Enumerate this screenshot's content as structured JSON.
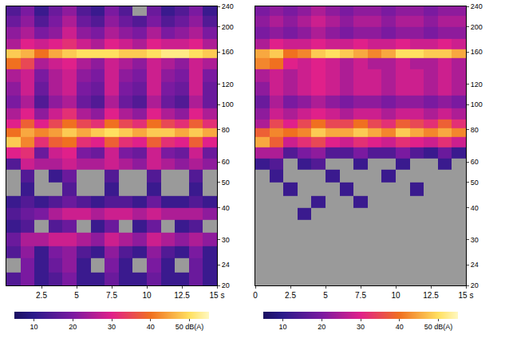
{
  "chart_data": [
    {
      "type": "heatmap",
      "x": [
        0.5,
        1.5,
        2.5,
        3.5,
        4.5,
        5.5,
        6.5,
        7.5,
        8.5,
        9.5,
        10.5,
        11.5,
        12.5,
        13.5,
        14.5
      ],
      "y": [
        21,
        24,
        27,
        30,
        34,
        38,
        42,
        47,
        53,
        59,
        65,
        72,
        78,
        84,
        92,
        102,
        115,
        130,
        145,
        158,
        170,
        190,
        210,
        232
      ],
      "z": [
        [
          15,
          20,
          12,
          15,
          20,
          12,
          12,
          18,
          12,
          12,
          18,
          12,
          12,
          18,
          12
        ],
        [
          null,
          20,
          12,
          18,
          22,
          12,
          null,
          20,
          12,
          null,
          20,
          12,
          null,
          18,
          12
        ],
        [
          15,
          22,
          12,
          20,
          22,
          15,
          12,
          22,
          15,
          12,
          22,
          15,
          12,
          20,
          12
        ],
        [
          18,
          25,
          25,
          28,
          28,
          25,
          22,
          28,
          25,
          22,
          28,
          25,
          22,
          25,
          22
        ],
        [
          12,
          15,
          null,
          15,
          18,
          null,
          12,
          18,
          null,
          12,
          18,
          null,
          12,
          15,
          null
        ],
        [
          15,
          18,
          20,
          25,
          28,
          28,
          25,
          28,
          28,
          25,
          28,
          25,
          25,
          25,
          22
        ],
        [
          12,
          15,
          12,
          15,
          18,
          15,
          12,
          15,
          15,
          12,
          18,
          12,
          12,
          15,
          12
        ],
        [
          null,
          12,
          null,
          null,
          15,
          null,
          null,
          12,
          null,
          null,
          12,
          null,
          null,
          12,
          null
        ],
        [
          null,
          15,
          null,
          12,
          18,
          null,
          null,
          15,
          null,
          null,
          15,
          null,
          null,
          15,
          null
        ],
        [
          15,
          28,
          25,
          25,
          28,
          25,
          25,
          28,
          25,
          22,
          28,
          25,
          22,
          25,
          22
        ],
        [
          30,
          32,
          18,
          28,
          30,
          20,
          18,
          28,
          20,
          18,
          28,
          20,
          18,
          28,
          18
        ],
        [
          48,
          42,
          32,
          38,
          40,
          32,
          30,
          38,
          32,
          30,
          38,
          32,
          30,
          38,
          30
        ],
        [
          40,
          45,
          42,
          44,
          48,
          45,
          48,
          50,
          48,
          45,
          48,
          48,
          45,
          48,
          45
        ],
        [
          30,
          38,
          30,
          35,
          40,
          35,
          32,
          40,
          35,
          32,
          40,
          35,
          32,
          38,
          32
        ],
        [
          25,
          30,
          22,
          28,
          32,
          25,
          22,
          30,
          25,
          22,
          30,
          25,
          22,
          30,
          25
        ],
        [
          20,
          25,
          15,
          22,
          25,
          18,
          15,
          25,
          18,
          15,
          25,
          18,
          15,
          25,
          18
        ],
        [
          22,
          28,
          18,
          25,
          28,
          20,
          18,
          28,
          20,
          18,
          28,
          20,
          18,
          28,
          18
        ],
        [
          25,
          28,
          20,
          25,
          28,
          22,
          20,
          28,
          22,
          20,
          28,
          22,
          20,
          28,
          20
        ],
        [
          40,
          35,
          25,
          28,
          30,
          25,
          22,
          28,
          25,
          22,
          28,
          25,
          22,
          28,
          25
        ],
        [
          48,
          46,
          40,
          45,
          48,
          50,
          50,
          50,
          48,
          48,
          50,
          52,
          52,
          50,
          48
        ],
        [
          25,
          30,
          28,
          30,
          32,
          28,
          25,
          30,
          28,
          25,
          30,
          28,
          28,
          30,
          25
        ],
        [
          22,
          25,
          20,
          22,
          28,
          22,
          20,
          25,
          22,
          20,
          25,
          20,
          22,
          25,
          20
        ],
        [
          18,
          22,
          15,
          20,
          25,
          18,
          15,
          22,
          18,
          15,
          20,
          15,
          18,
          22,
          15
        ],
        [
          15,
          20,
          12,
          18,
          22,
          15,
          12,
          20,
          15,
          null,
          18,
          12,
          15,
          20,
          12
        ]
      ],
      "xlim": [
        0,
        15
      ],
      "xticks": [
        2.5,
        5,
        7.5,
        10,
        12.5,
        {
          "value": 15,
          "label": "15 s"
        }
      ],
      "ylim": [
        20,
        240
      ],
      "yticks": [
        20,
        24,
        30,
        40,
        50,
        60,
        80,
        100,
        120,
        160,
        200,
        240
      ],
      "log": "y",
      "zlim": [
        5,
        55
      ],
      "zticks": [
        10,
        20,
        30,
        40,
        {
          "value": 50,
          "label": "50 dB(A)"
        }
      ]
    },
    {
      "type": "heatmap",
      "x": [
        0.5,
        1.5,
        2.5,
        3.5,
        4.5,
        5.5,
        6.5,
        7.5,
        8.5,
        9.5,
        10.5,
        11.5,
        12.5,
        13.5,
        14.5
      ],
      "y": [
        21,
        24,
        27,
        30,
        34,
        38,
        42,
        47,
        53,
        59,
        65,
        72,
        78,
        84,
        92,
        102,
        115,
        130,
        145,
        158,
        170,
        190,
        210,
        232
      ],
      "z": [
        [
          null,
          null,
          null,
          null,
          null,
          null,
          null,
          null,
          null,
          null,
          null,
          null,
          null,
          null,
          null
        ],
        [
          null,
          null,
          null,
          null,
          null,
          null,
          null,
          null,
          null,
          null,
          null,
          null,
          null,
          null,
          null
        ],
        [
          null,
          null,
          null,
          null,
          null,
          null,
          null,
          null,
          null,
          null,
          null,
          null,
          null,
          null,
          null
        ],
        [
          null,
          null,
          null,
          null,
          null,
          null,
          null,
          null,
          null,
          null,
          null,
          null,
          null,
          null,
          null
        ],
        [
          null,
          null,
          null,
          null,
          null,
          null,
          null,
          null,
          null,
          null,
          null,
          null,
          null,
          null,
          null
        ],
        [
          null,
          null,
          null,
          12,
          null,
          null,
          null,
          null,
          null,
          null,
          null,
          null,
          null,
          null,
          null
        ],
        [
          null,
          null,
          null,
          null,
          12,
          null,
          null,
          12,
          null,
          null,
          null,
          null,
          null,
          null,
          null
        ],
        [
          null,
          null,
          12,
          null,
          null,
          null,
          12,
          null,
          null,
          null,
          null,
          12,
          null,
          null,
          null
        ],
        [
          null,
          12,
          null,
          null,
          null,
          12,
          null,
          null,
          null,
          12,
          null,
          null,
          null,
          null,
          null
        ],
        [
          12,
          15,
          null,
          12,
          15,
          null,
          null,
          12,
          null,
          null,
          12,
          null,
          null,
          12,
          null
        ],
        [
          25,
          25,
          15,
          20,
          22,
          15,
          15,
          20,
          15,
          15,
          20,
          15,
          12,
          18,
          12
        ],
        [
          45,
          38,
          28,
          32,
          35,
          30,
          28,
          32,
          30,
          28,
          32,
          30,
          28,
          32,
          28
        ],
        [
          38,
          42,
          40,
          42,
          48,
          45,
          45,
          48,
          45,
          42,
          48,
          45,
          42,
          45,
          42
        ],
        [
          25,
          35,
          30,
          35,
          40,
          35,
          35,
          40,
          35,
          32,
          38,
          35,
          32,
          38,
          32
        ],
        [
          22,
          28,
          25,
          28,
          30,
          28,
          25,
          28,
          28,
          25,
          28,
          28,
          25,
          28,
          25
        ],
        [
          18,
          25,
          20,
          22,
          25,
          22,
          20,
          22,
          22,
          20,
          22,
          22,
          20,
          22,
          20
        ],
        [
          22,
          28,
          25,
          28,
          30,
          28,
          25,
          28,
          28,
          25,
          28,
          28,
          25,
          28,
          25
        ],
        [
          25,
          28,
          25,
          28,
          30,
          28,
          25,
          28,
          28,
          25,
          28,
          28,
          25,
          28,
          25
        ],
        [
          42,
          40,
          30,
          28,
          30,
          28,
          25,
          28,
          25,
          25,
          28,
          25,
          25,
          28,
          25
        ],
        [
          45,
          48,
          40,
          42,
          48,
          50,
          48,
          45,
          42,
          45,
          50,
          50,
          48,
          48,
          45
        ],
        [
          25,
          30,
          28,
          28,
          30,
          28,
          28,
          30,
          28,
          28,
          30,
          28,
          28,
          30,
          28
        ],
        [
          20,
          22,
          20,
          22,
          25,
          22,
          20,
          22,
          22,
          20,
          22,
          22,
          20,
          22,
          22
        ],
        [
          22,
          25,
          22,
          25,
          28,
          25,
          22,
          25,
          25,
          22,
          25,
          25,
          22,
          25,
          25
        ],
        [
          20,
          22,
          20,
          22,
          25,
          22,
          20,
          22,
          22,
          20,
          22,
          22,
          20,
          22,
          22
        ]
      ],
      "xlim": [
        0,
        15
      ],
      "xticks": [
        0,
        2.5,
        5,
        7.5,
        10,
        12.5,
        {
          "value": 15,
          "label": "15 s"
        }
      ],
      "ylim": [
        20,
        240
      ],
      "yticks": [
        20,
        24,
        30,
        40,
        50,
        60,
        80,
        100,
        120,
        160,
        200,
        240
      ],
      "log": "y",
      "zlim": [
        5,
        55
      ],
      "zticks": [
        10,
        20,
        30,
        40,
        {
          "value": 50,
          "label": "50 dB(A)"
        }
      ]
    }
  ]
}
